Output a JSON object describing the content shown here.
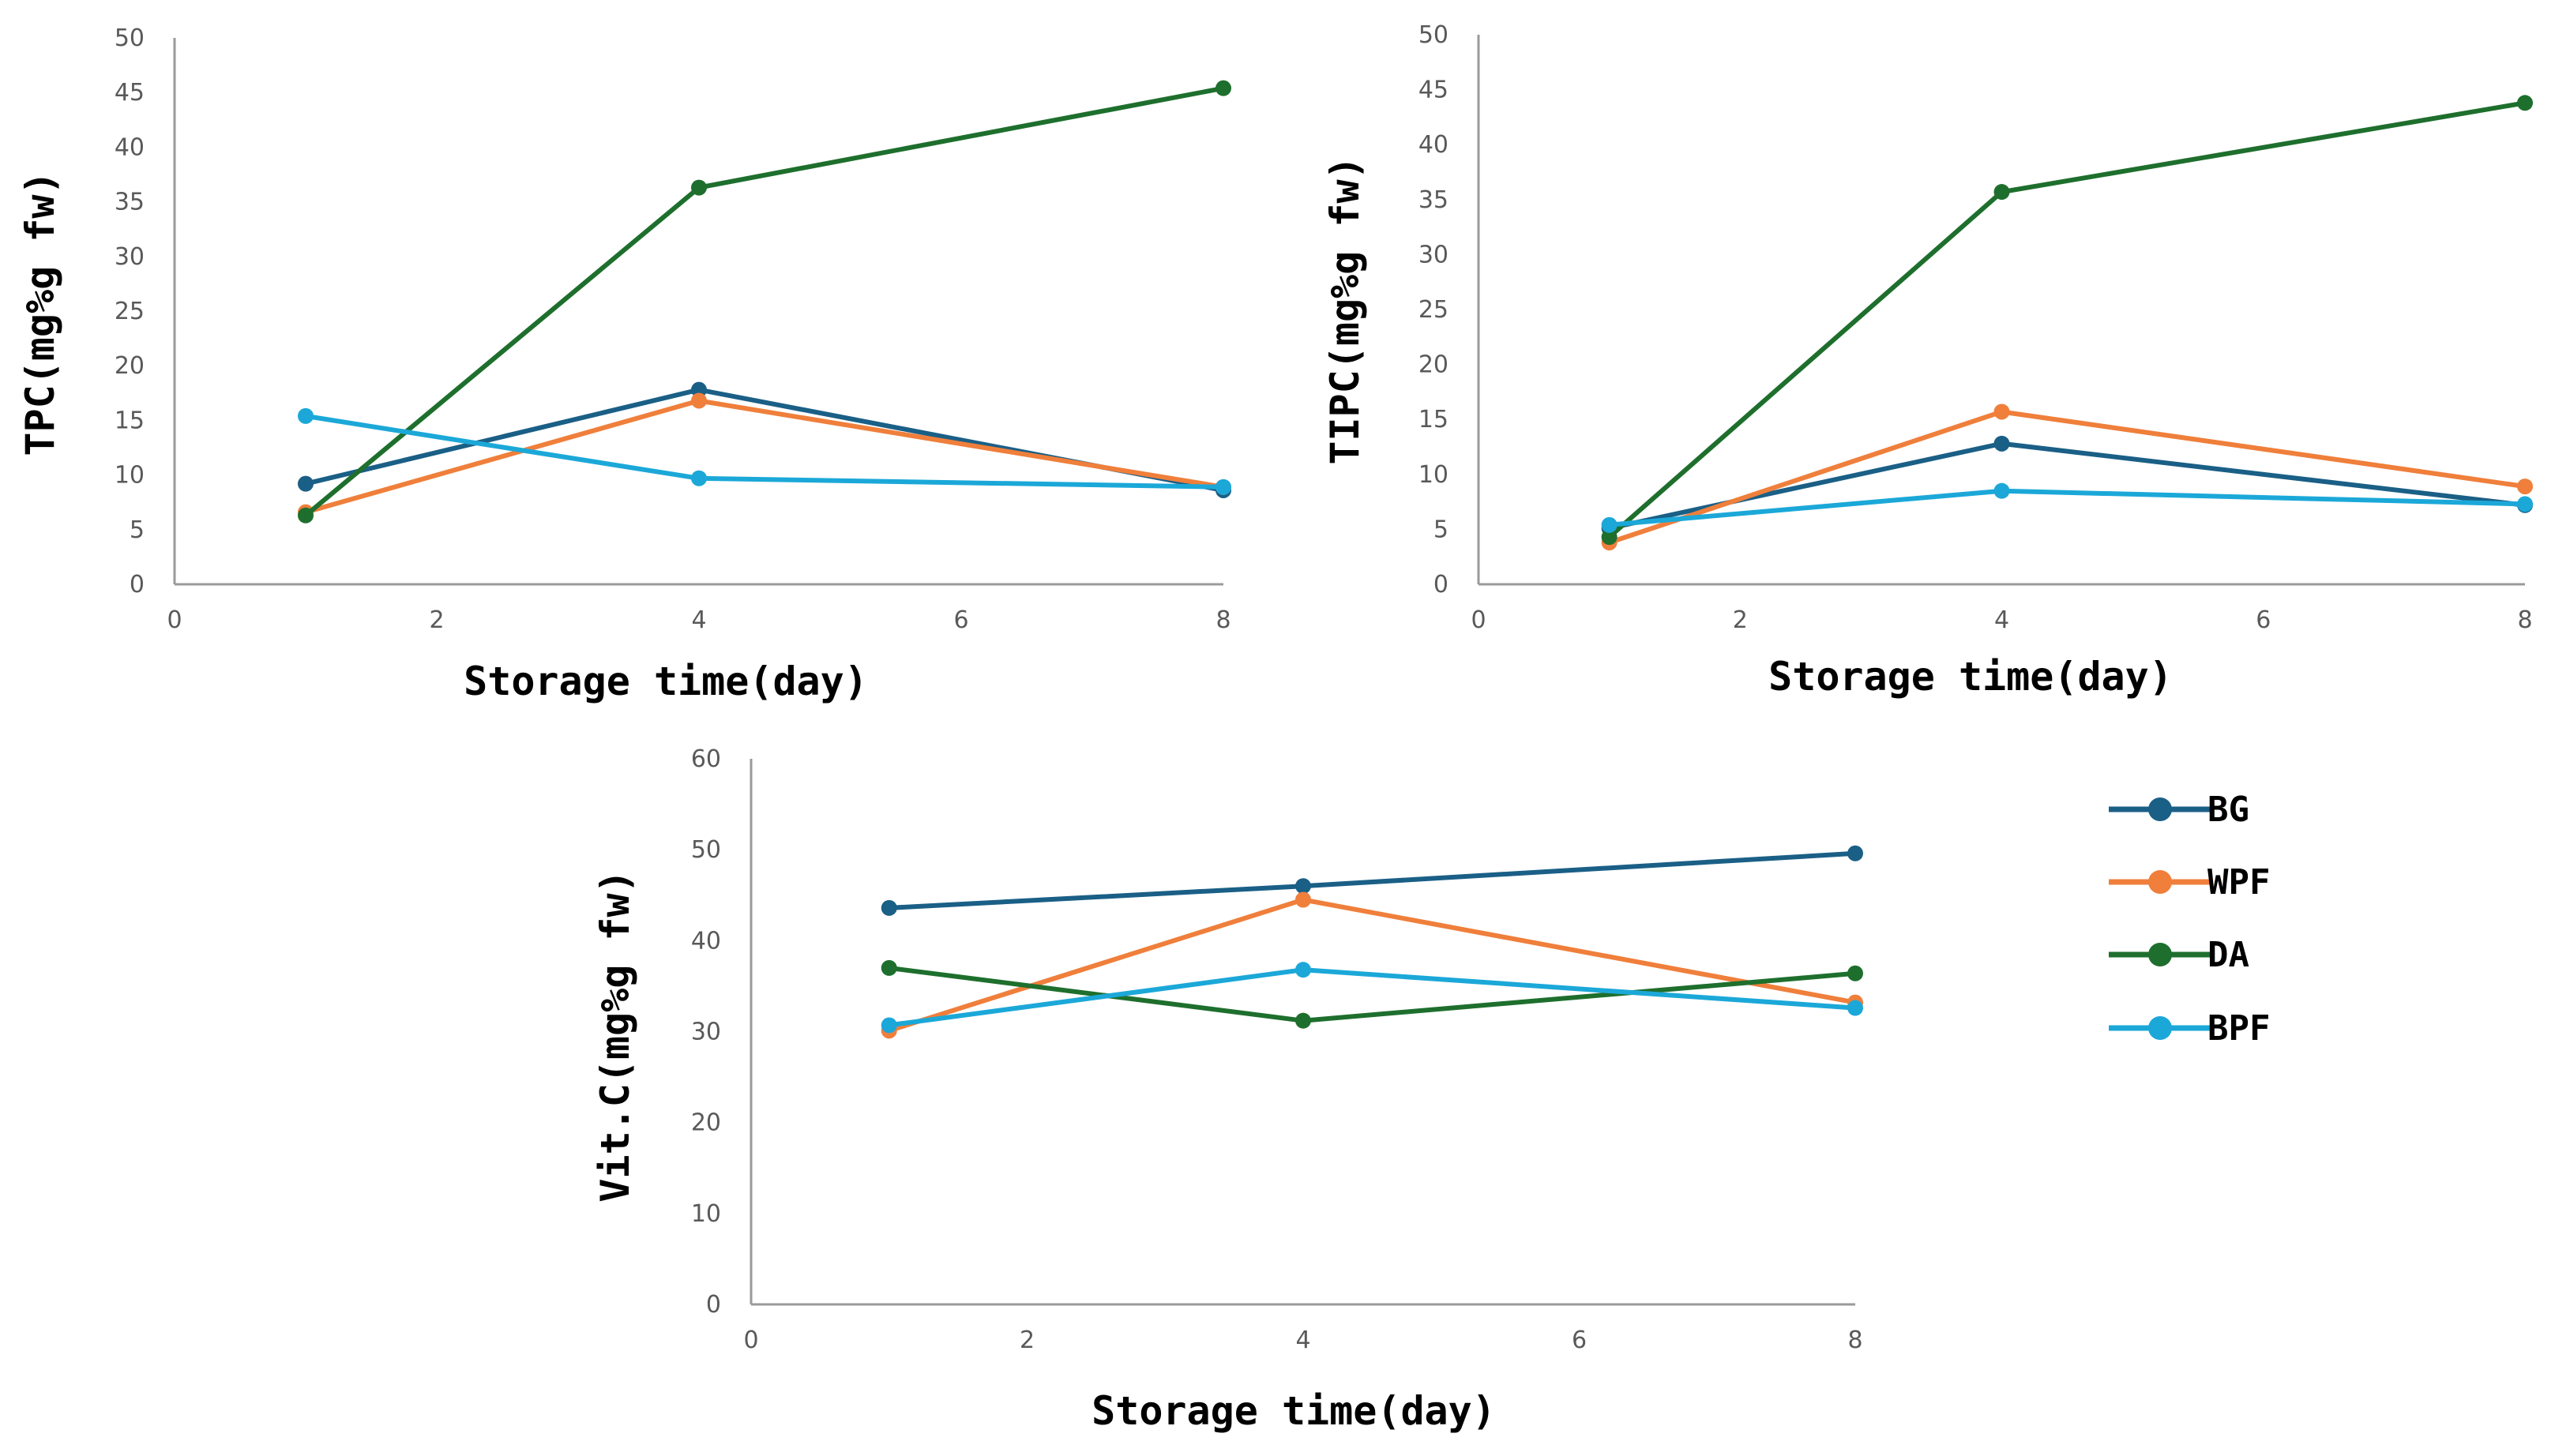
{
  "series_colors": {
    "BG": "#1a5f86",
    "WPF": "#ef7f3b",
    "DA": "#1e6f2d",
    "BPF": "#1ba8d8"
  },
  "axis_color": "#9a9a9a",
  "tick_color": "#595959",
  "legend": {
    "items": [
      "BG",
      "WPF",
      "DA",
      "BPF"
    ]
  },
  "chart_data": [
    {
      "type": "line",
      "ylabel": "TPC(mg%g fw)",
      "xlabel": "Storage time(day)",
      "xlim": [
        0,
        8
      ],
      "xticks": [
        "0",
        "2",
        "4",
        "6",
        "8"
      ],
      "ylim": [
        0,
        50
      ],
      "yticks": [
        "0",
        "5",
        "10",
        "15",
        "20",
        "25",
        "30",
        "35",
        "40",
        "45",
        "50"
      ],
      "x": [
        1,
        4,
        8
      ],
      "series": [
        {
          "name": "BG",
          "values": [
            9.2,
            17.8,
            8.6
          ]
        },
        {
          "name": "WPF",
          "values": [
            6.6,
            16.8,
            8.9
          ]
        },
        {
          "name": "DA",
          "values": [
            6.3,
            36.3,
            45.4
          ]
        },
        {
          "name": "BPF",
          "values": [
            15.4,
            9.7,
            8.9
          ]
        }
      ]
    },
    {
      "type": "line",
      "ylabel": "TIPC(mg%g fw)",
      "xlabel": "Storage time(day)",
      "xlim": [
        0,
        8
      ],
      "xticks": [
        "0",
        "2",
        "4",
        "6",
        "8"
      ],
      "ylim": [
        0,
        50
      ],
      "yticks": [
        "0",
        "5",
        "10",
        "15",
        "20",
        "25",
        "30",
        "35",
        "40",
        "45",
        "50"
      ],
      "x": [
        1,
        4,
        8
      ],
      "series": [
        {
          "name": "BG",
          "values": [
            5.1,
            12.8,
            7.2
          ]
        },
        {
          "name": "WPF",
          "values": [
            3.8,
            15.7,
            8.9
          ]
        },
        {
          "name": "DA",
          "values": [
            4.3,
            35.7,
            43.8
          ]
        },
        {
          "name": "BPF",
          "values": [
            5.4,
            8.5,
            7.3
          ]
        }
      ]
    },
    {
      "type": "line",
      "ylabel": "Vit.C(mg%g fw)",
      "xlabel": "Storage time(day)",
      "xlim": [
        0,
        8
      ],
      "xticks": [
        "0",
        "2",
        "4",
        "6",
        "8"
      ],
      "ylim": [
        0,
        60
      ],
      "yticks": [
        "0",
        "10",
        "20",
        "30",
        "40",
        "50",
        "60"
      ],
      "x": [
        1,
        4,
        8
      ],
      "series": [
        {
          "name": "BG",
          "values": [
            43.6,
            46.0,
            49.6
          ]
        },
        {
          "name": "WPF",
          "values": [
            30.1,
            44.5,
            33.2
          ]
        },
        {
          "name": "DA",
          "values": [
            37.0,
            31.2,
            36.4
          ]
        },
        {
          "name": "BPF",
          "values": [
            30.7,
            36.8,
            32.6
          ]
        }
      ]
    }
  ]
}
